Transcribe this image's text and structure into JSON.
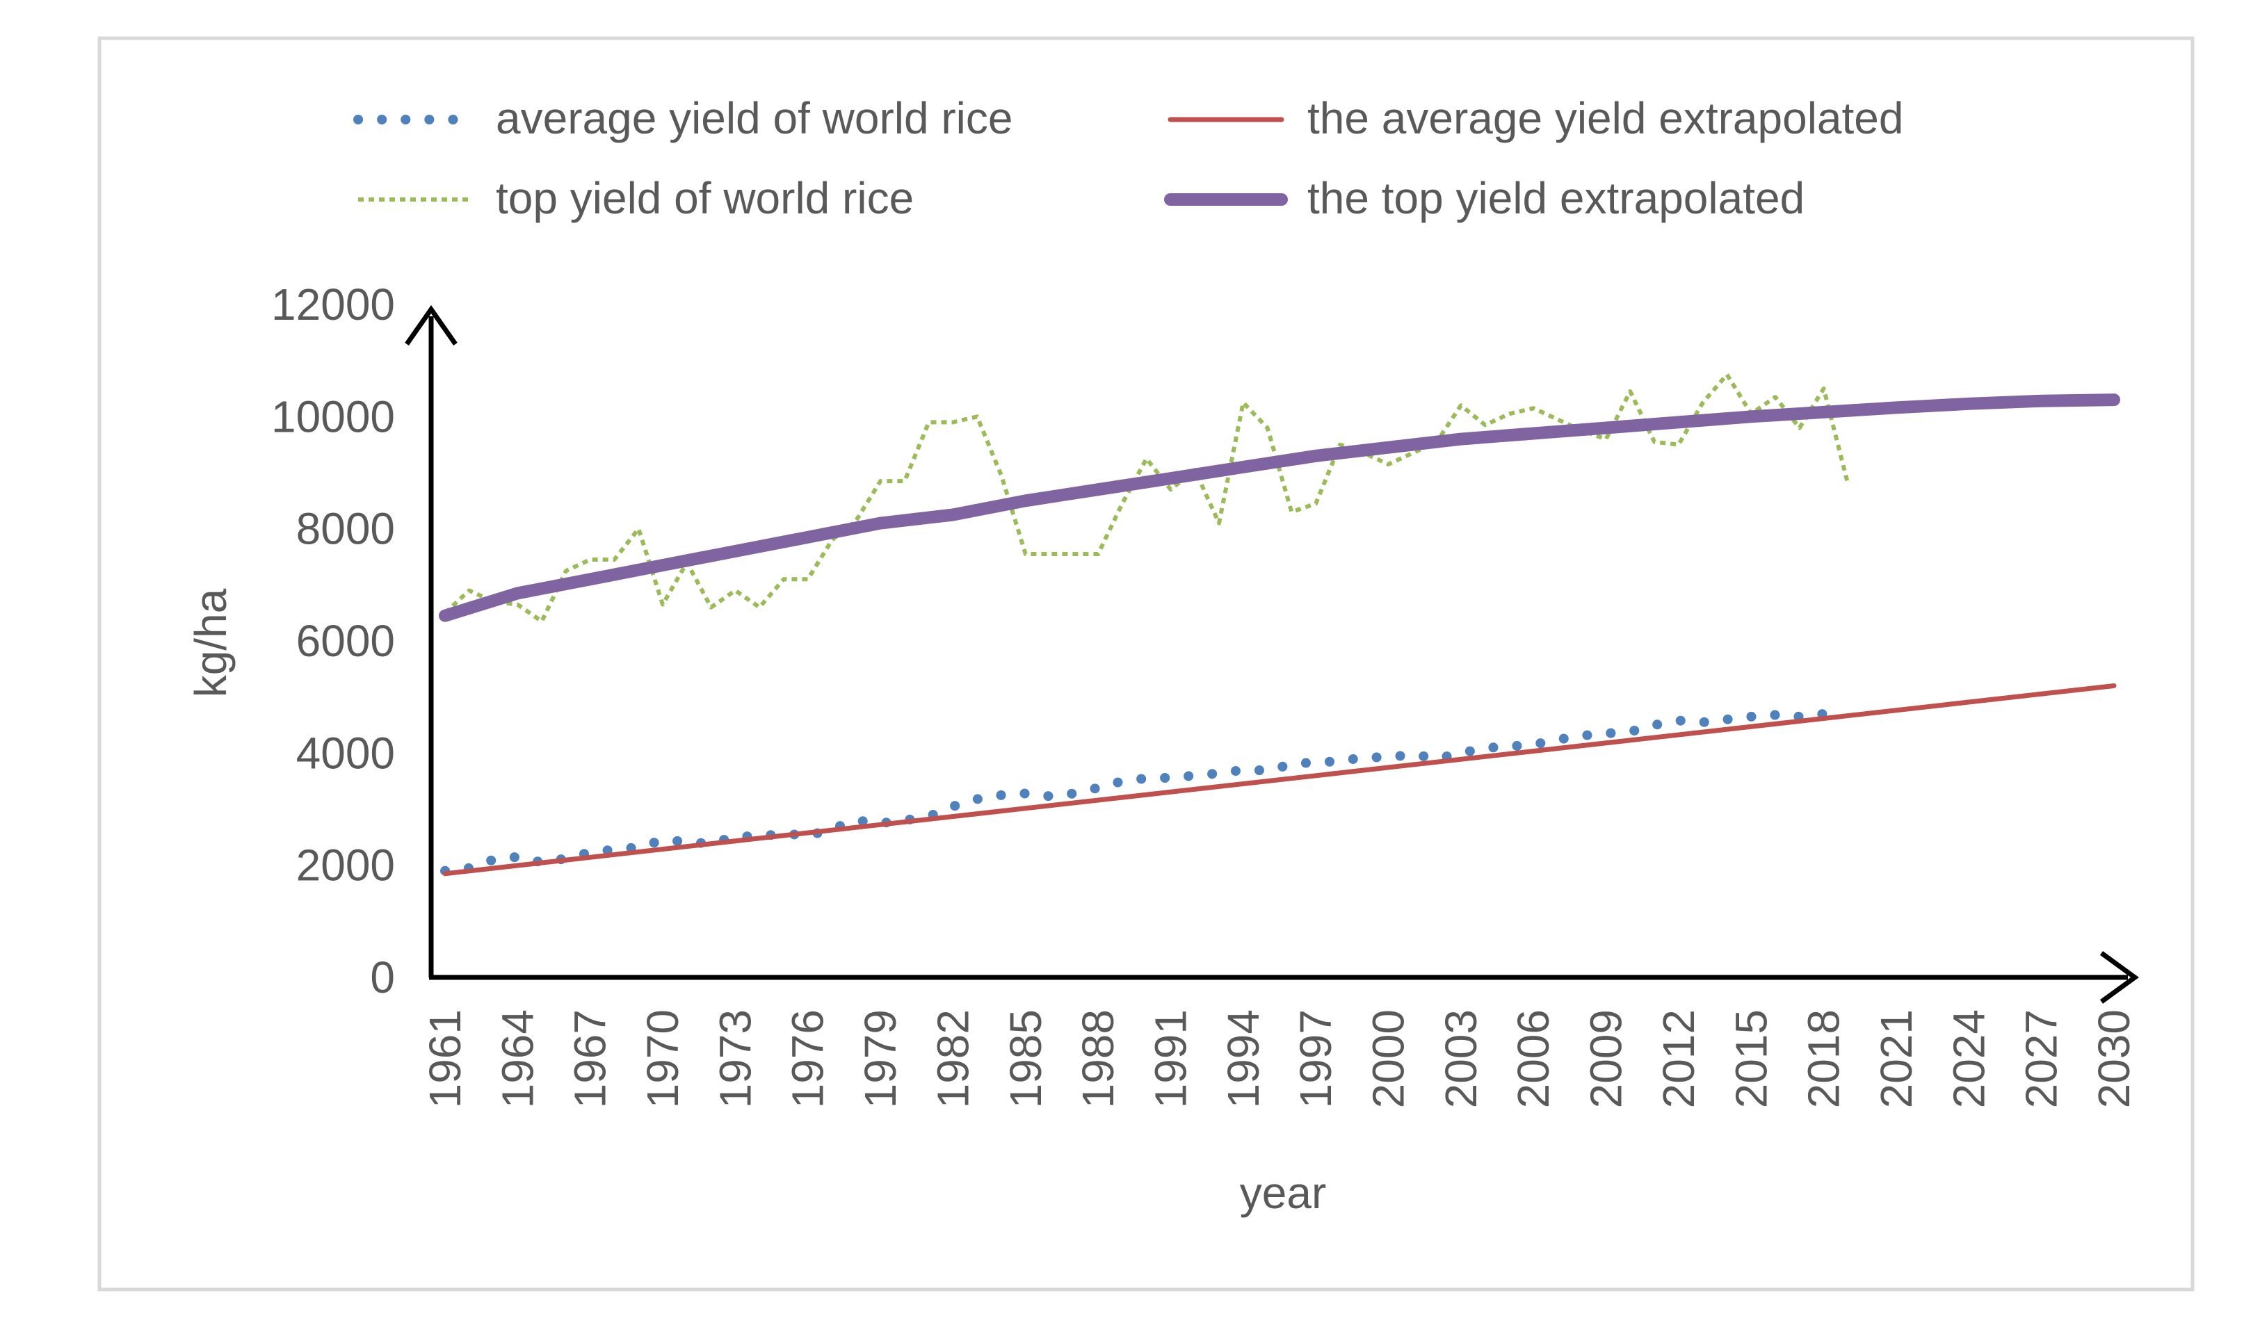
{
  "chart_data": {
    "type": "line",
    "title": "",
    "xlabel": "year",
    "ylabel": "kg/ha",
    "xlim": [
      1961,
      2030
    ],
    "ylim": [
      0,
      12000
    ],
    "x_ticks": [
      "1961",
      "1964",
      "1967",
      "1970",
      "1973",
      "1976",
      "1979",
      "1982",
      "1985",
      "1988",
      "1991",
      "1994",
      "1997",
      "2000",
      "2003",
      "2006",
      "2009",
      "2012",
      "2015",
      "2018",
      "2021",
      "2024",
      "2027",
      "2030"
    ],
    "y_ticks": [
      "0",
      "2000",
      "4000",
      "6000",
      "8000",
      "10000",
      "12000"
    ],
    "grid": false,
    "legend_position": "top",
    "series": [
      {
        "name": "average yield of world rice",
        "color": "#4f81bd",
        "style": "round-dotted",
        "x": [
          1961,
          1962,
          1963,
          1964,
          1965,
          1966,
          1967,
          1968,
          1969,
          1970,
          1971,
          1972,
          1973,
          1974,
          1975,
          1976,
          1977,
          1978,
          1979,
          1980,
          1981,
          1982,
          1983,
          1984,
          1985,
          1986,
          1987,
          1988,
          1989,
          1990,
          1991,
          1992,
          1993,
          1994,
          1995,
          1996,
          1997,
          1998,
          1999,
          2000,
          2001,
          2002,
          2003,
          2004,
          2005,
          2006,
          2007,
          2008,
          2009,
          2010,
          2011,
          2012,
          2013,
          2014,
          2015,
          2016,
          2017,
          2018
        ],
        "values": [
          1900,
          1950,
          2100,
          2150,
          2050,
          2120,
          2230,
          2280,
          2320,
          2450,
          2420,
          2380,
          2520,
          2510,
          2570,
          2520,
          2650,
          2800,
          2750,
          2800,
          2870,
          3050,
          3180,
          3250,
          3280,
          3230,
          3280,
          3380,
          3500,
          3550,
          3560,
          3600,
          3640,
          3700,
          3690,
          3800,
          3840,
          3850,
          3930,
          3920,
          3980,
          3900,
          4000,
          4090,
          4120,
          4150,
          4240,
          4310,
          4350,
          4380,
          4500,
          4580,
          4550,
          4600,
          4650,
          4680,
          4650,
          4700
        ]
      },
      {
        "name": "top yield of world rice",
        "color": "#9bbb59",
        "style": "dotted",
        "x": [
          1961,
          1962,
          1963,
          1964,
          1965,
          1966,
          1967,
          1968,
          1969,
          1970,
          1971,
          1972,
          1973,
          1974,
          1975,
          1976,
          1977,
          1978,
          1979,
          1980,
          1981,
          1982,
          1983,
          1984,
          1985,
          1986,
          1987,
          1988,
          1989,
          1990,
          1991,
          1992,
          1993,
          1994,
          1995,
          1996,
          1997,
          1998,
          1999,
          2000,
          2001,
          2002,
          2003,
          2004,
          2005,
          2006,
          2007,
          2008,
          2009,
          2010,
          2011,
          2012,
          2013,
          2014,
          2015,
          2016,
          2017,
          2018,
          2019
        ],
        "values": [
          6500,
          6900,
          6700,
          6650,
          6350,
          7250,
          7450,
          7450,
          8000,
          6650,
          7400,
          6600,
          6900,
          6600,
          7100,
          7100,
          7800,
          8150,
          8850,
          8850,
          9900,
          9900,
          10000,
          8950,
          7550,
          7550,
          7550,
          7550,
          8450,
          9250,
          8700,
          9050,
          8100,
          10250,
          9800,
          8300,
          8450,
          9500,
          9350,
          9150,
          9350,
          9550,
          10200,
          9850,
          10050,
          10150,
          9950,
          9750,
          9600,
          10450,
          9550,
          9500,
          10250,
          10750,
          10050,
          10350,
          9800,
          10500,
          8800
        ]
      },
      {
        "name": "the average yield extrapolated",
        "color": "#c0504d",
        "style": "solid-thin",
        "x": [
          1961,
          2030
        ],
        "values": [
          1850,
          5200
        ]
      },
      {
        "name": "the top yield extrapolated",
        "color": "#8064a2",
        "style": "solid-thick",
        "x": [
          1961,
          1964,
          1967,
          1970,
          1973,
          1976,
          1979,
          1980,
          1982,
          1985,
          1988,
          1991,
          1994,
          1997,
          2000,
          2003,
          2006,
          2009,
          2012,
          2015,
          2018,
          2021,
          2024,
          2027,
          2030
        ],
        "values": [
          6450,
          6850,
          7100,
          7350,
          7600,
          7850,
          8100,
          8150,
          8250,
          8500,
          8700,
          8900,
          9100,
          9300,
          9450,
          9600,
          9700,
          9800,
          9900,
          10000,
          10080,
          10160,
          10230,
          10280,
          10300
        ]
      }
    ]
  }
}
